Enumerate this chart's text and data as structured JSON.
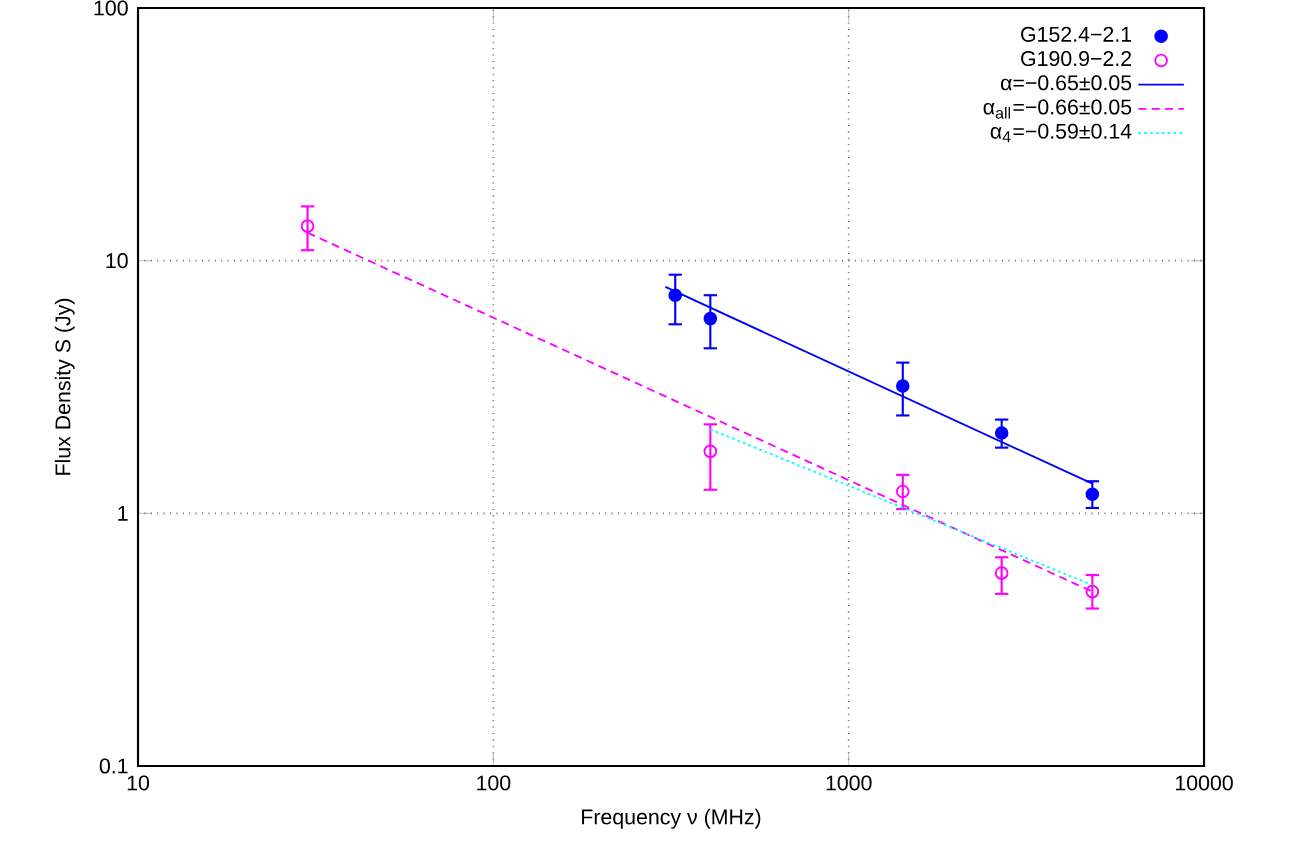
{
  "chart_data": {
    "type": "scatter",
    "xlabel": "Frequency ν (MHz)",
    "ylabel": "Flux Density S (Jy)",
    "log": "xy",
    "xlim": [
      10,
      10000
    ],
    "ylim": [
      0.1,
      100
    ],
    "xticks": [
      10,
      100,
      1000,
      10000
    ],
    "yticks": [
      0.1,
      1,
      10,
      100
    ],
    "grid": true,
    "legend": "top right",
    "series": [
      {
        "name": "G152.4−2.1",
        "color": "#0000ff",
        "marker": "circle",
        "x": [
          325,
          408,
          1420,
          2695,
          4850
        ],
        "values": [
          7.3,
          5.9,
          3.19,
          2.08,
          1.19
        ],
        "errors": [
          [
            5.6,
            8.8
          ],
          [
            4.5,
            7.3
          ],
          [
            2.44,
            3.95
          ],
          [
            1.82,
            2.35
          ],
          [
            1.05,
            1.34
          ]
        ]
      },
      {
        "name": "G190.9−2.2",
        "color": "#ff00ff",
        "marker": "open circle",
        "x": [
          30,
          408,
          1420,
          2695,
          4850
        ],
        "values": [
          13.7,
          1.76,
          1.22,
          0.58,
          0.49
        ],
        "errors": [
          [
            11.0,
            16.4
          ],
          [
            1.24,
            2.25
          ],
          [
            1.04,
            1.42
          ],
          [
            0.48,
            0.67
          ],
          [
            0.42,
            0.57
          ]
        ]
      },
      {
        "name": "α=−0.65±0.05",
        "type": "line",
        "color": "#0000ff",
        "line_style": "solid",
        "x": [
          305,
          4850
        ],
        "values": [
          7.87,
          1.31
        ]
      },
      {
        "name": "α$_{all}$=−0.66±0.05",
        "type": "line",
        "color": "#ff00ff",
        "line_style": "dashed",
        "x": [
          30,
          4850
        ],
        "values": [
          12.9,
          0.49
        ]
      },
      {
        "name": "α$_{4}$=−0.59±0.14",
        "type": "line",
        "color": "#00ffff",
        "line_style": "dotted",
        "x": [
          408,
          4850
        ],
        "values": [
          2.15,
          0.52
        ]
      }
    ]
  }
}
